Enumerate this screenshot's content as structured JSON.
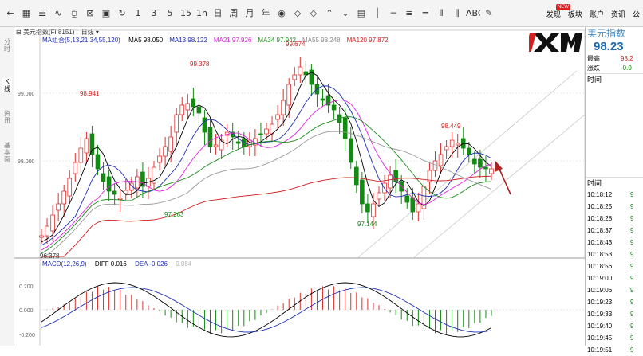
{
  "toolbar": {
    "icons": [
      "back-arrow-icon",
      "grid-icon",
      "list-icon",
      "line-chart-icon",
      "candle-chart-icon",
      "cross-icon",
      "save-icon",
      "refresh-icon",
      "period-1",
      "period-3",
      "period-5",
      "period-15",
      "period-1h",
      "period-day",
      "period-week",
      "period-month",
      "period-year",
      "eye-icon",
      "arrow-left-icon",
      "arrow-right-icon",
      "chevron-up-icon",
      "chevron-down-icon",
      "window-icon",
      "vertical-line-icon",
      "horizontal-line-icon",
      "parallel-lines-icon",
      "channel-icon",
      "bar-lines-icon",
      "hatch-icon",
      "abc-icon",
      "pencil-icon"
    ],
    "icon_glyphs": [
      "←",
      "▦",
      "☰",
      "∿",
      "⧮",
      "⊠",
      "▣",
      "↻",
      "1",
      "3",
      "5",
      "15",
      "1h",
      "日",
      "周",
      "月",
      "年",
      "◉",
      "◇",
      "◇",
      "⌃",
      "⌄",
      "▤",
      "│",
      "─",
      "≡",
      "═",
      "⫴",
      "⫼",
      "ABC",
      "✎"
    ],
    "links": [
      "发现",
      "板块",
      "账户",
      "资讯",
      "公"
    ],
    "new_badge": "NEW"
  },
  "sidetabs": [
    "分时",
    "K线",
    "资讯",
    "基本面"
  ],
  "chart": {
    "instrument": "美元指数(FI 8151)",
    "period": "日线",
    "ma_title": "MA组合(5,13,21,34,55,120)",
    "ma": [
      {
        "label": "MA5 98.050",
        "color": "#000000"
      },
      {
        "label": "MA13 98.122",
        "color": "#1f2fb5"
      },
      {
        "label": "MA21 97.926",
        "color": "#e020e0"
      },
      {
        "label": "MA34 97.942",
        "color": "#1c8a1c"
      },
      {
        "label": "MA55 98.248",
        "color": "#888888"
      },
      {
        "label": "MA120 97.872",
        "color": "#d02020"
      }
    ],
    "macd_title": "MACD(12,26,9)",
    "diff": "DIFF 0.016",
    "dea": "DEA -0.026",
    "macd_value": "0.084",
    "price_labels": [
      {
        "text": "99.674",
        "color": "#d02020"
      },
      {
        "text": "99.378",
        "color": "#d02020"
      },
      {
        "text": "98.941",
        "color": "#d02020"
      },
      {
        "text": "98.449",
        "color": "#d02020"
      },
      {
        "text": "97.263",
        "color": "#138a13"
      },
      {
        "text": "97.144",
        "color": "#138a13"
      },
      {
        "text": "96.378",
        "color": "#333333"
      }
    ],
    "y_axis": [
      "99.000",
      "98.000"
    ],
    "macd_axis": [
      "0.200",
      "0.000",
      "-0.200"
    ]
  },
  "right_panel": {
    "title": "美元指数",
    "price": "98.23",
    "high_label": "最高",
    "high_value": "98.2",
    "change_label": "涨跌",
    "change_value": "-0.0",
    "time_header": "时间",
    "ticks_header": "时间",
    "ticks": [
      {
        "time": "10:18:12",
        "v": "9"
      },
      {
        "time": "10:18:25",
        "v": "9"
      },
      {
        "time": "10:18:28",
        "v": "9"
      },
      {
        "time": "10:18:37",
        "v": "9"
      },
      {
        "time": "10:18:43",
        "v": "9"
      },
      {
        "time": "10:18:53",
        "v": "9"
      },
      {
        "time": "10:18:56",
        "v": "9"
      },
      {
        "time": "10:19:00",
        "v": "9"
      },
      {
        "time": "10:19:06",
        "v": "9"
      },
      {
        "time": "10:19:23",
        "v": "9"
      },
      {
        "time": "10:19:33",
        "v": "9"
      },
      {
        "time": "10:19:40",
        "v": "9"
      },
      {
        "time": "10:19:45",
        "v": "9"
      },
      {
        "time": "10:19:51",
        "v": "9"
      }
    ]
  },
  "colors": {
    "up": "#e03030",
    "down": "#138a13",
    "accent": "#1a66b3"
  }
}
